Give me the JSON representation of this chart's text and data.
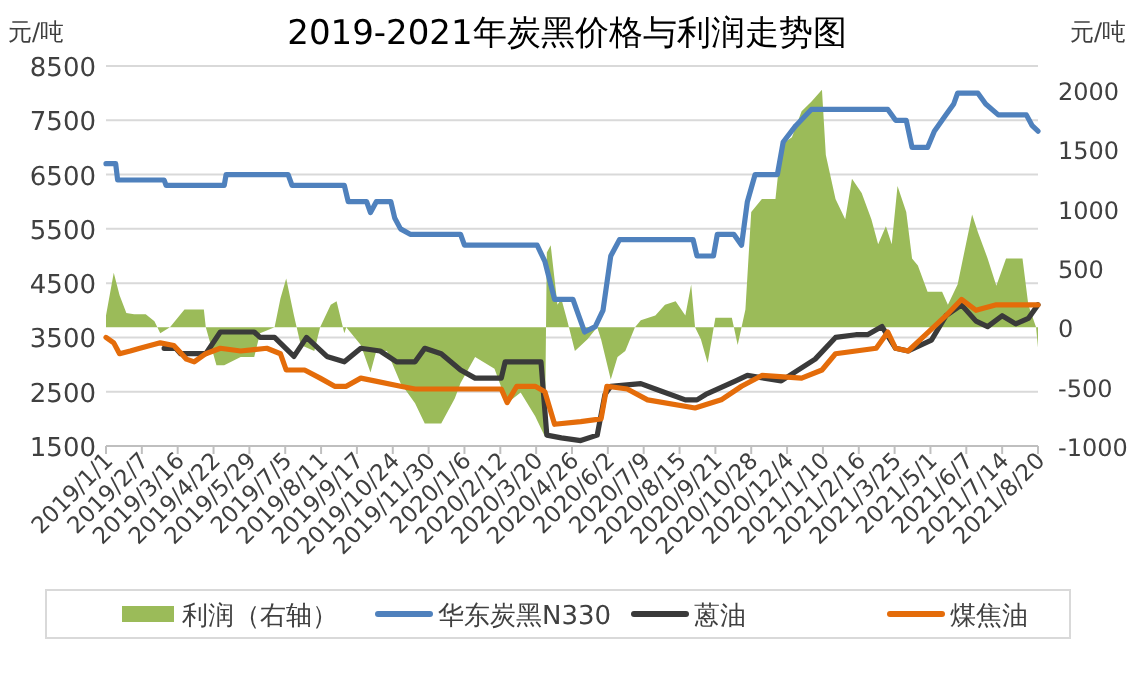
{
  "chart_data": {
    "type": "line",
    "title": "2019-2021年炭黑价格与利润走势图",
    "ylabel": "元/吨",
    "y2label": "元/吨",
    "xlim": [
      "2019-01-01",
      "2021-08-20"
    ],
    "xticks": [
      {
        "value": "2019-01-01",
        "label": "2019/1/1"
      },
      {
        "value": "2019-02-07",
        "label": "2019/2/7"
      },
      {
        "value": "2019-03-16",
        "label": "2019/3/16"
      },
      {
        "value": "2019-04-22",
        "label": "2019/4/22"
      },
      {
        "value": "2019-05-29",
        "label": "2019/5/29"
      },
      {
        "value": "2019-07-05",
        "label": "2019/7/5"
      },
      {
        "value": "2019-08-11",
        "label": "2019/8/11"
      },
      {
        "value": "2019-09-17",
        "label": "2019/9/17"
      },
      {
        "value": "2019-10-24",
        "label": "2019/10/24"
      },
      {
        "value": "2019-11-30",
        "label": "2019/11/30"
      },
      {
        "value": "2020-01-06",
        "label": "2020/1/6"
      },
      {
        "value": "2020-02-12",
        "label": "2020/2/12"
      },
      {
        "value": "2020-03-20",
        "label": "2020/3/20"
      },
      {
        "value": "2020-04-26",
        "label": "2020/4/26"
      },
      {
        "value": "2020-06-02",
        "label": "2020/6/2"
      },
      {
        "value": "2020-07-09",
        "label": "2020/7/9"
      },
      {
        "value": "2020-08-15",
        "label": "2020/8/15"
      },
      {
        "value": "2020-09-21",
        "label": "2020/9/21"
      },
      {
        "value": "2020-10-28",
        "label": "2020/10/28"
      },
      {
        "value": "2020-12-04",
        "label": "2020/12/4"
      },
      {
        "value": "2021-01-10",
        "label": "2021/1/10"
      },
      {
        "value": "2021-02-16",
        "label": "2021/2/16"
      },
      {
        "value": "2021-03-25",
        "label": "2021/3/25"
      },
      {
        "value": "2021-05-01",
        "label": "2021/5/1"
      },
      {
        "value": "2021-06-07",
        "label": "2021/6/7"
      },
      {
        "value": "2021-07-14",
        "label": "2021/7/14"
      },
      {
        "value": "2021-08-20",
        "label": "2021/8/20"
      }
    ],
    "ylim": [
      1500,
      8500
    ],
    "yticks": [
      1500,
      2500,
      3500,
      4500,
      5500,
      6500,
      7500,
      8500
    ],
    "y2lim": [
      -1000,
      2200
    ],
    "y2ticks": [
      -1000,
      -500,
      0,
      500,
      1000,
      1500,
      2000
    ],
    "grid": "y",
    "legend": "bottom",
    "series": [
      {
        "name": "利润（右轴）",
        "type": "area",
        "axis": "y2",
        "color": "#9bbb59",
        "x": [
          "2019-01-01",
          "2019-01-09",
          "2019-01-15",
          "2019-01-22",
          "2019-01-30",
          "2019-02-11",
          "2019-02-20",
          "2019-02-26",
          "2019-03-08",
          "2019-03-23",
          "2019-04-12",
          "2019-04-14",
          "2019-04-25",
          "2019-05-03",
          "2019-05-20",
          "2019-06-03",
          "2019-06-09",
          "2019-06-24",
          "2019-06-30",
          "2019-07-06",
          "2019-07-14",
          "2019-07-21",
          "2019-08-04",
          "2019-08-10",
          "2019-08-21",
          "2019-08-27",
          "2019-09-04",
          "2019-09-06",
          "2019-09-21",
          "2019-10-01",
          "2019-10-07",
          "2019-10-18",
          "2019-11-01",
          "2019-11-16",
          "2019-11-26",
          "2019-12-13",
          "2019-12-27",
          "2020-01-02",
          "2020-01-17",
          "2020-02-06",
          "2020-02-19",
          "2020-03-04",
          "2020-03-19",
          "2020-03-29",
          "2020-03-31",
          "2020-04-04",
          "2020-04-11",
          "2020-04-15",
          "2020-04-21",
          "2020-04-29",
          "2020-05-12",
          "2020-05-22",
          "2020-05-26",
          "2020-06-05",
          "2020-06-12",
          "2020-06-20",
          "2020-06-30",
          "2020-07-06",
          "2020-07-21",
          "2020-07-31",
          "2020-08-11",
          "2020-08-21",
          "2020-08-27",
          "2020-08-31",
          "2020-09-06",
          "2020-09-13",
          "2020-09-21",
          "2020-10-08",
          "2020-10-14",
          "2020-10-22",
          "2020-10-28",
          "2020-11-08",
          "2020-11-22",
          "2020-11-28",
          "2020-12-09",
          "2020-12-19",
          "2020-12-29",
          "2021-01-09",
          "2021-01-13",
          "2021-01-23",
          "2021-02-02",
          "2021-02-09",
          "2021-02-19",
          "2021-03-01",
          "2021-03-08",
          "2021-03-16",
          "2021-03-22",
          "2021-03-28",
          "2021-04-06",
          "2021-04-12",
          "2021-04-18",
          "2021-04-28",
          "2021-05-13",
          "2021-05-19",
          "2021-05-29",
          "2021-06-13",
          "2021-06-19",
          "2021-06-29",
          "2021-07-08",
          "2021-07-18",
          "2021-08-04",
          "2021-08-10",
          "2021-08-18",
          "2021-08-20"
        ],
        "values": [
          100,
          460,
          270,
          120,
          110,
          110,
          50,
          -50,
          0,
          150,
          150,
          0,
          -320,
          -320,
          -250,
          -250,
          -50,
          0,
          240,
          410,
          100,
          -150,
          -200,
          0,
          190,
          220,
          -50,
          0,
          -150,
          -380,
          -200,
          -200,
          -470,
          -640,
          -810,
          -810,
          -600,
          -470,
          -250,
          -350,
          -640,
          -550,
          -750,
          -920,
          630,
          690,
          190,
          240,
          60,
          -200,
          -100,
          0,
          -100,
          -440,
          -250,
          -200,
          0,
          60,
          100,
          190,
          220,
          100,
          360,
          0,
          -100,
          -300,
          80,
          80,
          -150,
          150,
          970,
          1080,
          1080,
          1540,
          1600,
          1820,
          1900,
          2000,
          1450,
          1080,
          910,
          1250,
          1130,
          910,
          700,
          850,
          700,
          1190,
          970,
          580,
          520,
          300,
          300,
          190,
          360,
          950,
          800,
          580,
          350,
          580,
          580,
          190,
          0,
          -170
        ]
      },
      {
        "name": "华东炭黑N330",
        "color": "#4f81bd",
        "x": [
          "2019-01-01",
          "2019-01-11",
          "2019-01-13",
          "2019-03-02",
          "2019-03-04",
          "2019-05-03",
          "2019-05-05",
          "2019-07-08",
          "2019-07-12",
          "2019-09-04",
          "2019-09-08",
          "2019-09-27",
          "2019-10-01",
          "2019-10-07",
          "2019-10-22",
          "2019-10-26",
          "2019-11-01",
          "2019-11-11",
          "2020-01-02",
          "2020-01-06",
          "2020-03-21",
          "2020-03-29",
          "2020-04-08",
          "2020-04-27",
          "2020-05-01",
          "2020-05-09",
          "2020-05-20",
          "2020-05-28",
          "2020-06-05",
          "2020-06-14",
          "2020-08-29",
          "2020-09-02",
          "2020-09-19",
          "2020-09-23",
          "2020-10-10",
          "2020-10-18",
          "2020-10-24",
          "2020-11-01",
          "2020-11-24",
          "2020-11-30",
          "2020-12-13",
          "2020-12-29",
          "2021-03-18",
          "2021-03-26",
          "2021-04-06",
          "2021-04-12",
          "2021-04-28",
          "2021-05-05",
          "2021-05-17",
          "2021-05-25",
          "2021-05-29",
          "2021-06-19",
          "2021-06-27",
          "2021-07-10",
          "2021-08-08",
          "2021-08-14",
          "2021-08-20"
        ],
        "values": [
          6700,
          6700,
          6400,
          6400,
          6300,
          6300,
          6500,
          6500,
          6300,
          6300,
          6000,
          6000,
          5800,
          6000,
          6000,
          5700,
          5500,
          5400,
          5400,
          5200,
          5200,
          4900,
          4200,
          4200,
          4000,
          3600,
          3700,
          4000,
          5000,
          5300,
          5300,
          5000,
          5000,
          5400,
          5400,
          5200,
          6000,
          6500,
          6500,
          7100,
          7400,
          7700,
          7700,
          7500,
          7500,
          7000,
          7000,
          7300,
          7600,
          7800,
          8000,
          8000,
          7800,
          7600,
          7600,
          7400,
          7300
        ]
      },
      {
        "name": "蒽油",
        "color": "#3a3a3a",
        "x": [
          "2019-03-02",
          "2019-03-14",
          "2019-03-19",
          "2019-04-14",
          "2019-04-29",
          "2019-06-03",
          "2019-06-09",
          "2019-06-24",
          "2019-07-14",
          "2019-07-27",
          "2019-08-17",
          "2019-09-04",
          "2019-09-21",
          "2019-10-11",
          "2019-10-28",
          "2019-11-16",
          "2019-11-26",
          "2019-12-13",
          "2020-01-02",
          "2020-01-17",
          "2020-02-13",
          "2020-02-17",
          "2020-03-25",
          "2020-03-31",
          "2020-04-15",
          "2020-05-05",
          "2020-05-22",
          "2020-05-30",
          "2020-06-05",
          "2020-07-06",
          "2020-07-21",
          "2020-08-21",
          "2020-09-02",
          "2020-09-11",
          "2020-10-12",
          "2020-10-24",
          "2020-11-28",
          "2021-01-02",
          "2021-01-23",
          "2021-02-13",
          "2021-02-25",
          "2021-03-12",
          "2021-03-26",
          "2021-04-08",
          "2021-05-02",
          "2021-05-17",
          "2021-06-02",
          "2021-06-17",
          "2021-06-29",
          "2021-07-14",
          "2021-07-28",
          "2021-08-10",
          "2021-08-20"
        ],
        "values": [
          3300,
          3300,
          3200,
          3200,
          3600,
          3600,
          3500,
          3500,
          3150,
          3500,
          3150,
          3050,
          3300,
          3250,
          3050,
          3050,
          3300,
          3200,
          2900,
          2750,
          2750,
          3050,
          3050,
          1700,
          1650,
          1600,
          1700,
          2450,
          2600,
          2650,
          2550,
          2350,
          2350,
          2450,
          2700,
          2800,
          2700,
          3100,
          3500,
          3550,
          3550,
          3700,
          3300,
          3250,
          3450,
          3900,
          4100,
          3800,
          3700,
          3900,
          3750,
          3850,
          4100
        ]
      },
      {
        "name": "煤焦油",
        "color": "#e46c0a",
        "x": [
          "2019-01-01",
          "2019-01-09",
          "2019-01-15",
          "2019-01-26",
          "2019-02-05",
          "2019-02-26",
          "2019-03-12",
          "2019-03-25",
          "2019-04-02",
          "2019-04-14",
          "2019-04-29",
          "2019-05-20",
          "2019-06-16",
          "2019-06-30",
          "2019-07-06",
          "2019-07-25",
          "2019-08-10",
          "2019-08-25",
          "2019-09-06",
          "2019-09-21",
          "2019-10-05",
          "2019-11-01",
          "2019-11-16",
          "2019-12-13",
          "2020-02-13",
          "2020-02-19",
          "2020-02-29",
          "2020-03-19",
          "2020-03-29",
          "2020-04-08",
          "2020-05-05",
          "2020-05-26",
          "2020-06-01",
          "2020-06-22",
          "2020-07-13",
          "2020-08-31",
          "2020-09-27",
          "2020-10-18",
          "2020-11-08",
          "2020-12-19",
          "2021-01-09",
          "2021-01-23",
          "2021-03-06",
          "2021-03-18",
          "2021-03-26",
          "2021-04-08",
          "2021-04-26",
          "2021-05-17",
          "2021-06-02",
          "2021-06-17",
          "2021-07-08",
          "2021-07-28",
          "2021-08-20"
        ],
        "values": [
          3500,
          3400,
          3200,
          3250,
          3300,
          3400,
          3350,
          3100,
          3050,
          3200,
          3300,
          3250,
          3300,
          3200,
          2900,
          2900,
          2750,
          2600,
          2600,
          2750,
          2700,
          2600,
          2550,
          2550,
          2550,
          2300,
          2600,
          2600,
          2500,
          1900,
          1950,
          2000,
          2600,
          2550,
          2350,
          2200,
          2350,
          2600,
          2800,
          2750,
          2900,
          3200,
          3300,
          3600,
          3300,
          3250,
          3550,
          3900,
          4200,
          4000,
          4100,
          4100,
          4100
        ]
      }
    ]
  }
}
